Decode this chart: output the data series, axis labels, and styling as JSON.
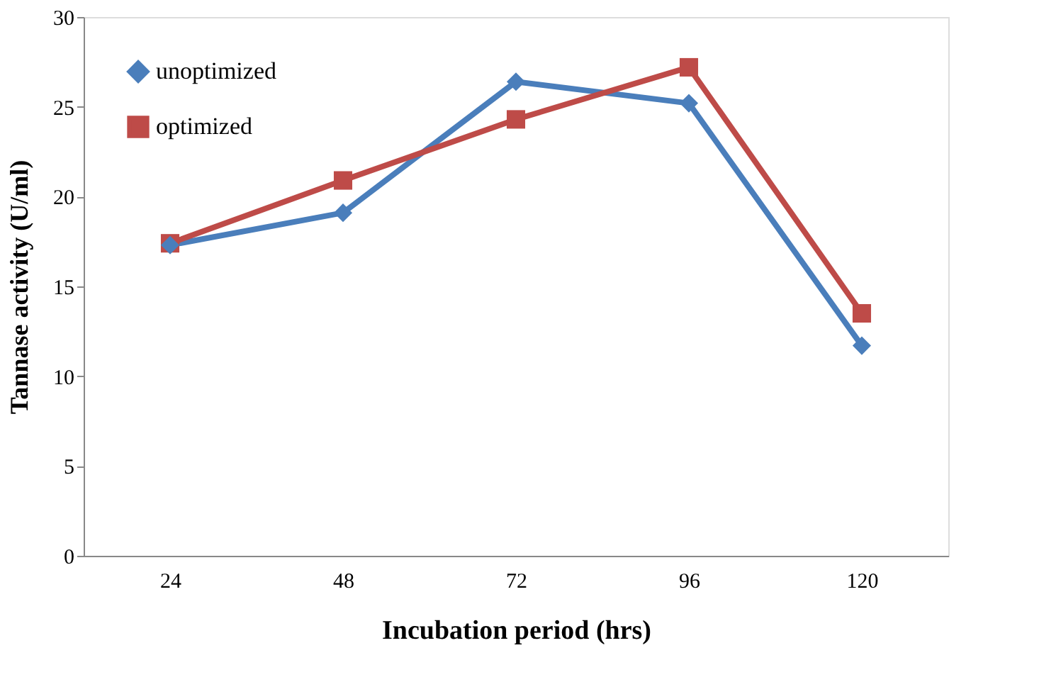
{
  "chart_data": {
    "type": "line",
    "xlabel": "Incubation period (hrs)",
    "ylabel": "Tannase activity (U/ml)",
    "categories": [
      "24",
      "48",
      "72",
      "96",
      "120"
    ],
    "series": [
      {
        "name": "unoptimized",
        "color": "#4a7ebb",
        "marker": "diamond",
        "values": [
          17.3,
          19.1,
          26.4,
          25.2,
          11.7
        ]
      },
      {
        "name": "optimized",
        "color": "#be4b48",
        "marker": "square",
        "values": [
          17.4,
          20.9,
          24.3,
          27.2,
          13.5
        ]
      }
    ],
    "ylim": [
      0,
      30
    ],
    "yticks": [
      0,
      5,
      10,
      15,
      20,
      25,
      30
    ],
    "grid": false,
    "legend": "top left",
    "line_style": "solid"
  }
}
